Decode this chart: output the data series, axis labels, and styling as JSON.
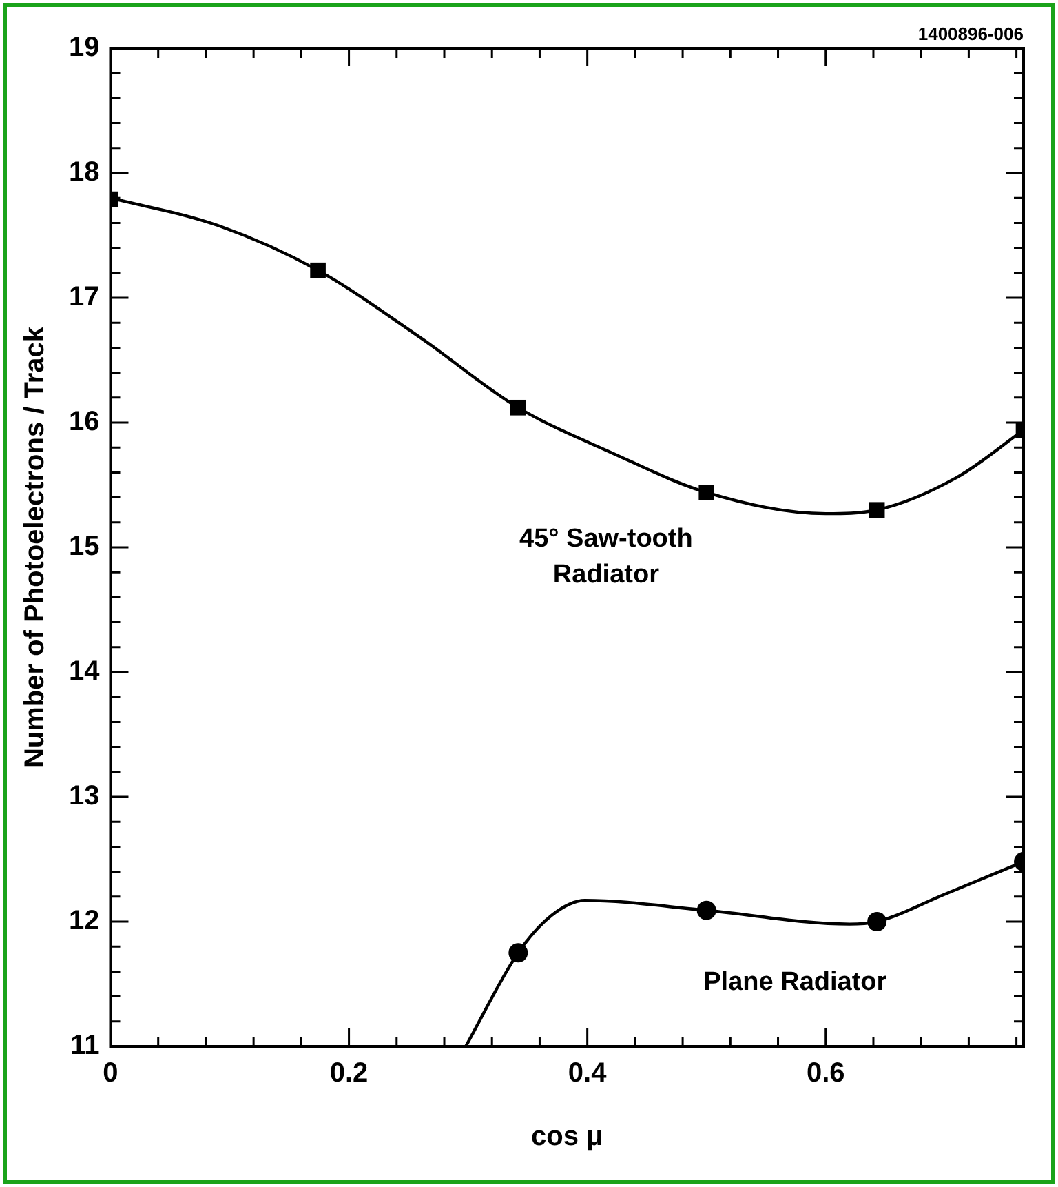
{
  "chart_data": {
    "type": "scatter",
    "xlabel": "cos μ",
    "ylabel": "Number of Photoelectrons / Track",
    "annotations": [
      "1400896-006"
    ],
    "xlim": [
      0,
      0.766
    ],
    "ylim": [
      11,
      19
    ],
    "xticks": [
      0,
      {
        "value": 0.04,
        "label": null
      },
      {
        "value": 0.08,
        "label": null
      },
      {
        "value": 0.12,
        "label": null
      },
      {
        "value": 0.16,
        "label": null
      },
      0.2,
      {
        "value": 0.24,
        "label": null
      },
      {
        "value": 0.28,
        "label": null
      },
      {
        "value": 0.32,
        "label": null
      },
      {
        "value": 0.36,
        "label": null
      },
      0.4,
      {
        "value": 0.44,
        "label": null
      },
      {
        "value": 0.48,
        "label": null
      },
      {
        "value": 0.52,
        "label": null
      },
      {
        "value": 0.56,
        "label": null
      },
      0.6,
      {
        "value": 0.64,
        "label": null
      },
      {
        "value": 0.68,
        "label": null
      },
      {
        "value": 0.72,
        "label": null
      },
      {
        "value": 0.76,
        "label": null
      }
    ],
    "yticks": [
      11,
      {
        "value": 11.2,
        "label": null
      },
      {
        "value": 11.4,
        "label": null
      },
      {
        "value": 11.6,
        "label": null
      },
      {
        "value": 11.8,
        "label": null
      },
      12,
      {
        "value": 12.2,
        "label": null
      },
      {
        "value": 12.4,
        "label": null
      },
      {
        "value": 12.6,
        "label": null
      },
      {
        "value": 12.8,
        "label": null
      },
      13,
      {
        "value": 13.2,
        "label": null
      },
      {
        "value": 13.4,
        "label": null
      },
      {
        "value": 13.6,
        "label": null
      },
      {
        "value": 13.8,
        "label": null
      },
      14,
      {
        "value": 14.2,
        "label": null
      },
      {
        "value": 14.4,
        "label": null
      },
      {
        "value": 14.6,
        "label": null
      },
      {
        "value": 14.8,
        "label": null
      },
      15,
      {
        "value": 15.2,
        "label": null
      },
      {
        "value": 15.4,
        "label": null
      },
      {
        "value": 15.6,
        "label": null
      },
      {
        "value": 15.8,
        "label": null
      },
      16,
      {
        "value": 16.2,
        "label": null
      },
      {
        "value": 16.4,
        "label": null
      },
      {
        "value": 16.6,
        "label": null
      },
      {
        "value": 16.8,
        "label": null
      },
      17,
      {
        "value": 17.2,
        "label": null
      },
      {
        "value": 17.4,
        "label": null
      },
      {
        "value": 17.6,
        "label": null
      },
      {
        "value": 17.8,
        "label": null
      },
      18,
      {
        "value": 18.2,
        "label": null
      },
      {
        "value": 18.4,
        "label": null
      },
      {
        "value": 18.6,
        "label": null
      },
      {
        "value": 18.8,
        "label": null
      },
      19
    ],
    "grid": false,
    "legend": false,
    "series": [
      {
        "type": "line",
        "color": "#000000",
        "marker": "none",
        "x": [
          0,
          0.09,
          0.174,
          0.26,
          0.342,
          0.42,
          0.5,
          0.6,
          0.643,
          0.71,
          0.766
        ],
        "values": [
          17.8,
          17.58,
          17.22,
          16.68,
          16.12,
          15.76,
          15.44,
          15.27,
          15.3,
          15.56,
          15.94
        ]
      },
      {
        "type": "scatter",
        "name": "45° Saw-tooth Radiator",
        "color": "#000000",
        "marker": "square",
        "x": [
          0,
          0.174,
          0.342,
          0.5,
          0.643,
          0.766
        ],
        "values": [
          17.79,
          17.22,
          16.12,
          15.44,
          15.3,
          15.94
        ]
      },
      {
        "type": "line",
        "color": "#000000",
        "marker": "none",
        "x": [
          0.298,
          0.342,
          0.37,
          0.398,
          0.5,
          0.62,
          0.643,
          0.7,
          0.766
        ],
        "values": [
          11,
          11.75,
          12.05,
          12.17,
          12.09,
          11.98,
          12.0,
          12.22,
          12.48
        ]
      },
      {
        "type": "scatter",
        "name": "Plane Radiator",
        "color": "#000000",
        "marker": "circle",
        "x": [
          0.342,
          0.5,
          0.643,
          0.766
        ],
        "values": [
          11.75,
          12.09,
          12.0,
          12.48
        ]
      }
    ]
  }
}
